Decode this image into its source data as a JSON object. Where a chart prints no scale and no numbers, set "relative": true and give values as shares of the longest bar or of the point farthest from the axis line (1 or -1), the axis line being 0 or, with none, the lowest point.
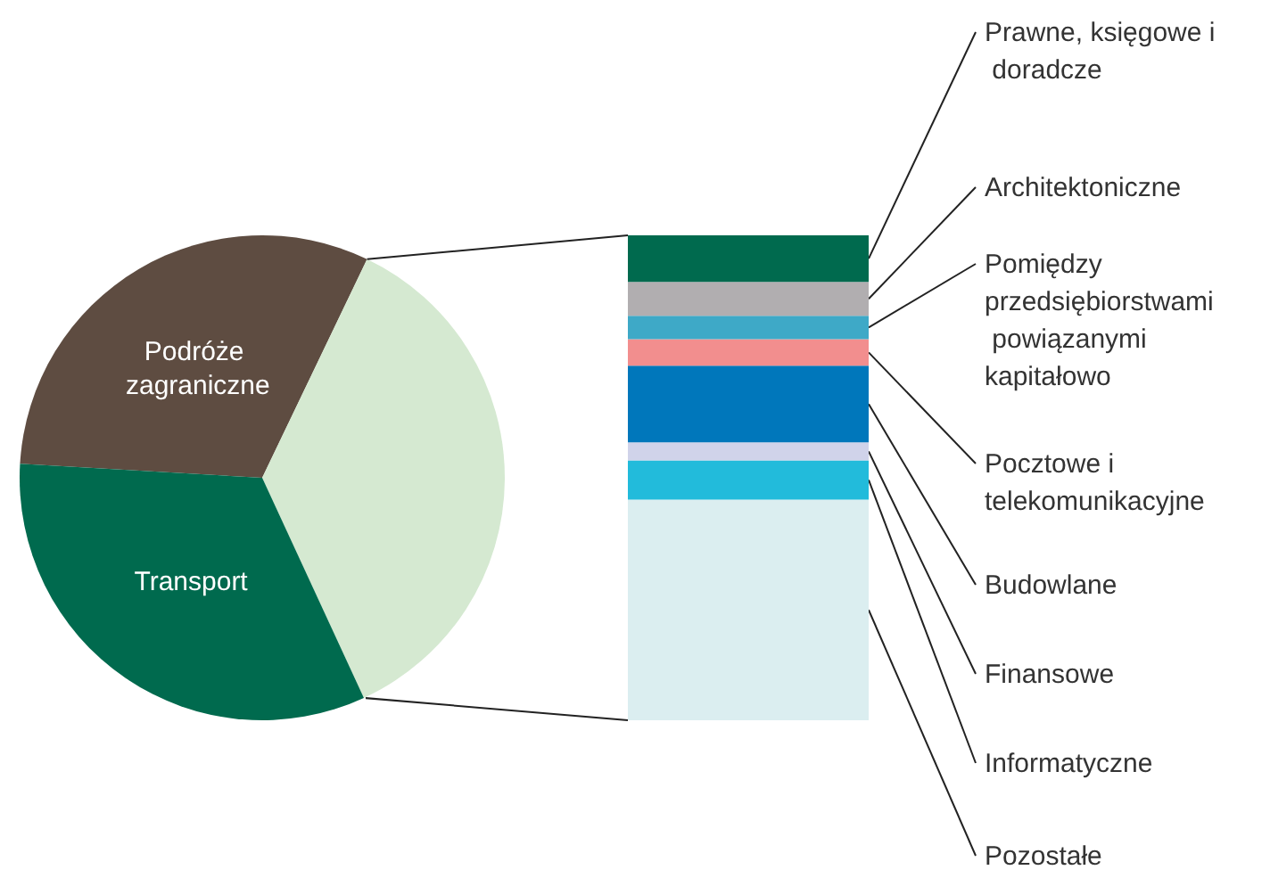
{
  "chart_data": [
    {
      "type": "pie",
      "categories": [
        "Podróże zagraniczne",
        null,
        "Transport"
      ],
      "values": [
        31.2,
        36.0,
        32.8
      ],
      "colors": [
        "#5e4c41",
        "#d5e9d1",
        "#006a4e"
      ]
    },
    {
      "type": "bar",
      "stacked": true,
      "relative": true,
      "categories": [
        null
      ],
      "series": [
        {
          "name": "Pozostałe",
          "color": "#dbeef0",
          "values": [
            0.455
          ]
        },
        {
          "name": "Informatyczne",
          "color": "#22bbdb",
          "values": [
            0.081
          ]
        },
        {
          "name": "Finansowe",
          "color": "#d0d3ea",
          "values": [
            0.037
          ]
        },
        {
          "name": "Budowlane",
          "color": "#0077bb",
          "values": [
            0.158
          ]
        },
        {
          "name": "Pocztowe i telekomunikacyjne",
          "color": "#f28e8e",
          "values": [
            0.055
          ]
        },
        {
          "name": "Pomiędzy przedsiębiorstwami powiązanymi kapitałowo",
          "color": "#3ea9c7",
          "values": [
            0.048
          ]
        },
        {
          "name": "Architektoniczne",
          "color": "#b1aeb0",
          "values": [
            0.07
          ]
        },
        {
          "name": "Prawne, księgowe i doradcze",
          "color": "#006a4e",
          "values": [
            0.096
          ]
        }
      ]
    }
  ]
}
